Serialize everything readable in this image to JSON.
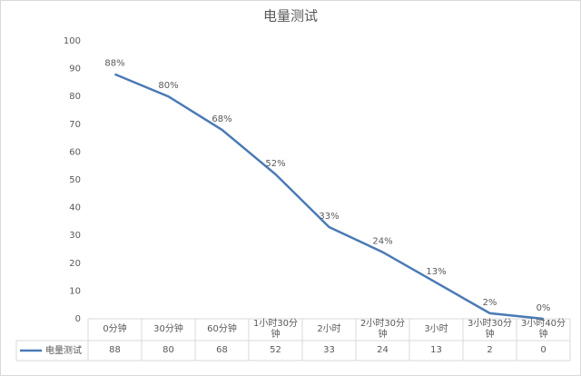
{
  "chart_data": {
    "type": "line",
    "title": "电量测试",
    "categories": [
      "0分钟",
      "30分钟",
      "60分钟",
      "1小时30分钟",
      "2小时",
      "2小时30分钟",
      "3小时",
      "3小时30分钟",
      "3小时40分钟"
    ],
    "series": [
      {
        "name": "电量测试",
        "color": "#4a7ab5",
        "values": [
          88,
          80,
          68,
          52,
          33,
          24,
          13,
          2,
          0
        ],
        "value_labels": [
          "88%",
          "80%",
          "68%",
          "52%",
          "33%",
          "24%",
          "13%",
          "2%",
          "0%"
        ]
      }
    ],
    "ylim": [
      0,
      100
    ],
    "yticks": [
      0,
      10,
      20,
      30,
      40,
      50,
      60,
      70,
      80,
      90,
      100
    ],
    "grid": false,
    "data_table": true
  }
}
